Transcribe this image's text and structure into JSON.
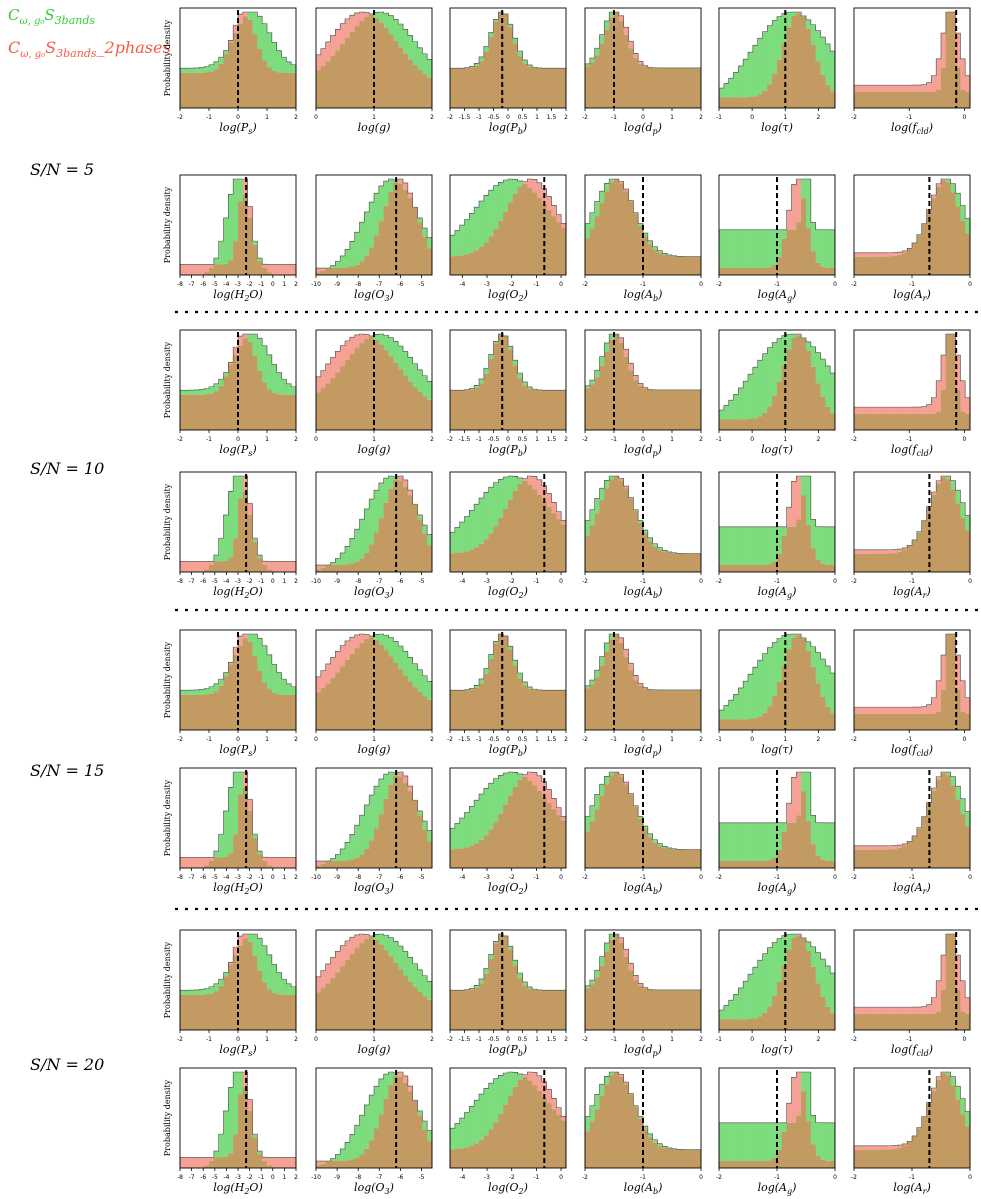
{
  "legend": [
    {
      "id": "green",
      "label": "C_{ω, g0} S_{3bands}",
      "label_main": "C",
      "label_sub": "ω, g₀",
      "label_main2": "S",
      "label_sub2": "3bands",
      "label_tail": "",
      "color": "#33cc33",
      "fill": "#7ddc7d"
    },
    {
      "id": "red",
      "label": "C_{ω, g0} S_{3bands}_2phases",
      "label_main": "C",
      "label_sub": "ω, g₀",
      "label_main2": "S",
      "label_sub2": "3bands",
      "label_tail": "_2phases",
      "color": "#f45a46",
      "fill": "#f6a195"
    }
  ],
  "overlap_color": "#c29a62",
  "ylabel": "Probability density",
  "blocks": [
    {
      "label": "S/N = 5"
    },
    {
      "label": "S/N = 10"
    },
    {
      "label": "S/N = 15"
    },
    {
      "label": "S/N = 20"
    }
  ],
  "row_templates": [
    {
      "panels": [
        {
          "name": "Ps",
          "xlabel": "log(P_s)",
          "xlabel_main": "log(P",
          "xlabel_sub": "s",
          "xlim": [
            -2,
            2
          ],
          "ticks": [
            -2,
            -1,
            0,
            1,
            2
          ],
          "truth": 0
        },
        {
          "name": "g",
          "xlabel": "log(g)",
          "xlabel_main": "log(g",
          "xlabel_sub": "",
          "xlim": [
            0,
            2
          ],
          "ticks": [
            0,
            1,
            2
          ],
          "truth": 1
        },
        {
          "name": "Pb",
          "xlabel": "log(P_b)",
          "xlabel_main": "log(P",
          "xlabel_sub": "b",
          "xlim": [
            -2,
            2
          ],
          "ticks": [
            -2,
            -1.5,
            -1,
            -0.5,
            0,
            0.5,
            1,
            1.5,
            2
          ],
          "truth": -0.2
        },
        {
          "name": "dp",
          "xlabel": "log(d_p)",
          "xlabel_main": "log(d",
          "xlabel_sub": "p",
          "xlim": [
            -2,
            2
          ],
          "ticks": [
            -2,
            -1,
            0,
            1,
            2
          ],
          "truth": -1
        },
        {
          "name": "tau",
          "xlabel": "log(τ)",
          "xlabel_main": "log(τ",
          "xlabel_sub": "",
          "xlim": [
            -1,
            2.5
          ],
          "ticks": [
            -1,
            0,
            1,
            2
          ],
          "truth": 1
        },
        {
          "name": "fcld",
          "xlabel": "log(f_cld)",
          "xlabel_main": "log(f",
          "xlabel_sub": "cld",
          "xlim": [
            -2,
            0.1
          ],
          "ticks": [
            -2,
            -1,
            0
          ],
          "truth": -0.15
        }
      ]
    },
    {
      "panels": [
        {
          "name": "H2O",
          "xlabel": "log(H_2O)",
          "xlabel_main": "log(H",
          "xlabel_sub": "2",
          "xlabel_tail": "O)",
          "xlim": [
            -8,
            2
          ],
          "ticks": [
            -8,
            -7,
            -6,
            -5,
            -4,
            -3,
            -2,
            -1,
            0,
            1,
            2
          ],
          "truth": -2.3
        },
        {
          "name": "O3",
          "xlabel": "log(O_3)",
          "xlabel_main": "log(O",
          "xlabel_sub": "3",
          "xlim": [
            -10,
            -4.5
          ],
          "ticks": [
            -10,
            -9,
            -8,
            -7,
            -6,
            -5
          ],
          "truth": -6.2
        },
        {
          "name": "O2",
          "xlabel": "log(O_2)",
          "xlabel_main": "log(O",
          "xlabel_sub": "2",
          "xlim": [
            -4.5,
            0.2
          ],
          "ticks": [
            -4,
            -3,
            -2,
            -1,
            0
          ],
          "truth": -0.68
        },
        {
          "name": "Ab",
          "xlabel": "log(A_b)",
          "xlabel_main": "log(A",
          "xlabel_sub": "b",
          "xlim": [
            -2,
            0
          ],
          "ticks": [
            -2,
            -1,
            0
          ],
          "truth": -1
        },
        {
          "name": "Ag",
          "xlabel": "log(A_g)",
          "xlabel_main": "log(A",
          "xlabel_sub": "g",
          "xlim": [
            -2,
            0
          ],
          "ticks": [
            -2,
            -1,
            0
          ],
          "truth": -1
        },
        {
          "name": "Ar",
          "xlabel": "log(A_r)",
          "xlabel_main": "log(A",
          "xlabel_sub": "r",
          "xlim": [
            -2,
            0
          ],
          "ticks": [
            -2,
            -1,
            0
          ],
          "truth": -0.7
        }
      ]
    }
  ],
  "chart_data": {
    "type": "histogram-grid",
    "title": "",
    "description_series": [
      "C_{ω, g0} S_{3bands}",
      "C_{ω, g0} S_{3bands}_2phases"
    ],
    "rows": 8,
    "cols": 6,
    "truth_line": "dashed black vertical line",
    "grid": false,
    "distributions": [
      [
        {
          "g": [
            0.5,
            0.6,
            1.0
          ],
          "r": [
            0.2,
            0.4,
            0.9
          ]
        },
        {
          "g": [
            1.1,
            0.6,
            0.6
          ],
          "r": [
            0.8,
            0.6,
            0.5
          ]
        },
        {
          "g": [
            -0.2,
            0.4,
            1.0
          ],
          "r": [
            -0.2,
            0.35,
            1.0
          ]
        },
        {
          "g": [
            -1.0,
            0.4,
            1.0
          ],
          "r": [
            -0.9,
            0.4,
            1.0
          ]
        },
        {
          "g": [
            1.2,
            1.2,
            0.0
          ],
          "r": [
            1.4,
            0.45,
            0.3
          ]
        },
        {
          "g": [
            -0.25,
            0.08,
            0.4
          ],
          "r": [
            -0.25,
            0.15,
            0.6
          ]
        }
      ],
      [
        {
          "g": [
            -3.0,
            1.0,
            0.0
          ],
          "r": [
            -2.4,
            0.5,
            0.3
          ]
        },
        {
          "g": [
            -6.4,
            1.3,
            0.0
          ],
          "r": [
            -6.0,
            0.8,
            0.2
          ]
        },
        {
          "g": [
            -2.0,
            1.5,
            0.5
          ],
          "r": [
            -1.2,
            1.0,
            0.5
          ]
        },
        {
          "g": [
            -1.5,
            0.35,
            0.5
          ],
          "r": [
            -1.45,
            0.3,
            0.5
          ]
        },
        {
          "g": [
            -0.5,
            0.06,
            1.0
          ],
          "r": [
            -0.65,
            0.15,
            0.2
          ]
        },
        {
          "g": [
            -0.4,
            0.3,
            0.5
          ],
          "r": [
            -0.45,
            0.25,
            0.6
          ]
        }
      ]
    ]
  }
}
